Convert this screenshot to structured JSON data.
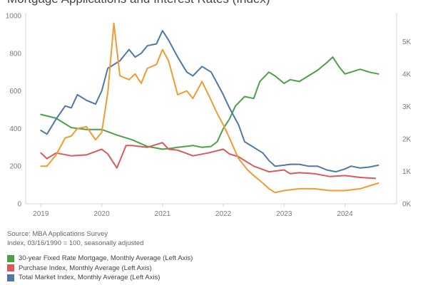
{
  "chart_data": {
    "type": "line",
    "title": "Mortgage Applications and Interest Rates (Index)",
    "left_axis": {
      "range": [
        0,
        1000
      ],
      "ticks": [
        "0",
        "200",
        "400",
        "600",
        "800",
        "1000"
      ]
    },
    "right_axis": {
      "range": [
        0,
        5800
      ],
      "ticks": [
        "0K",
        "1K",
        "2K",
        "3K",
        "4K",
        "5K"
      ]
    },
    "x_axis": {
      "range": [
        2018.75,
        2024.85
      ],
      "ticks": [
        "2019",
        "2020",
        "2021",
        "2022",
        "2023",
        "2024"
      ]
    },
    "grid": false,
    "legend_position": "bottom-left",
    "series": [
      {
        "name": "30-year Fixed Rate Mortgage, Monthly Average (Left Axis)",
        "color": "#4e9f4a",
        "axis": "left",
        "x": [
          2019.0,
          2019.25,
          2019.5,
          2019.75,
          2020.0,
          2020.25,
          2020.5,
          2020.75,
          2021.0,
          2021.15,
          2021.25,
          2021.5,
          2021.65,
          2021.8,
          2021.9,
          2022.0,
          2022.1,
          2022.2,
          2022.35,
          2022.5,
          2022.6,
          2022.75,
          2022.85,
          2023.0,
          2023.1,
          2023.25,
          2023.4,
          2023.55,
          2023.7,
          2023.8,
          2023.9,
          2024.0,
          2024.1,
          2024.25,
          2024.4,
          2024.55
        ],
        "y": [
          475,
          455,
          405,
          395,
          395,
          365,
          340,
          305,
          290,
          295,
          300,
          310,
          300,
          305,
          330,
          400,
          450,
          520,
          570,
          560,
          650,
          700,
          680,
          640,
          660,
          650,
          680,
          710,
          750,
          780,
          730,
          690,
          700,
          715,
          700,
          690
        ]
      },
      {
        "name": "Purchase Index, Monthly Average (Left Axis)",
        "color": "#d85a5a",
        "axis": "left",
        "x": [
          2019.0,
          2019.1,
          2019.25,
          2019.5,
          2019.75,
          2020.0,
          2020.1,
          2020.25,
          2020.4,
          2020.5,
          2020.75,
          2021.0,
          2021.1,
          2021.25,
          2021.5,
          2021.75,
          2022.0,
          2022.1,
          2022.25,
          2022.5,
          2022.75,
          2023.0,
          2023.1,
          2023.25,
          2023.5,
          2023.75,
          2024.0,
          2024.25,
          2024.5
        ],
        "y": [
          270,
          240,
          270,
          255,
          260,
          290,
          265,
          190,
          310,
          310,
          300,
          325,
          290,
          285,
          255,
          270,
          290,
          265,
          250,
          200,
          170,
          180,
          160,
          165,
          160,
          145,
          150,
          140,
          135
        ]
      },
      {
        "name": "Total Market Index, Monthly Average (Left Axis)",
        "color": "#4f78a8",
        "axis": "left",
        "x": [
          2019.0,
          2019.1,
          2019.25,
          2019.4,
          2019.5,
          2019.6,
          2019.75,
          2019.9,
          2020.0,
          2020.1,
          2020.2,
          2020.3,
          2020.45,
          2020.55,
          2020.65,
          2020.75,
          2020.9,
          2021.0,
          2021.1,
          2021.25,
          2021.4,
          2021.5,
          2021.65,
          2021.8,
          2021.9,
          2022.0,
          2022.1,
          2022.25,
          2022.35,
          2022.5,
          2022.65,
          2022.75,
          2022.85,
          2023.0,
          2023.1,
          2023.25,
          2023.4,
          2023.55,
          2023.7,
          2023.85,
          2024.0,
          2024.1,
          2024.25,
          2024.4,
          2024.55
        ],
        "y": [
          390,
          370,
          450,
          520,
          510,
          580,
          550,
          530,
          600,
          720,
          740,
          760,
          820,
          780,
          800,
          840,
          850,
          920,
          870,
          780,
          700,
          680,
          730,
          700,
          640,
          580,
          510,
          420,
          330,
          300,
          270,
          230,
          200,
          205,
          210,
          210,
          200,
          200,
          180,
          170,
          185,
          200,
          190,
          195,
          205
        ]
      },
      {
        "name": "",
        "color": "#f09b33",
        "axis": "left",
        "x": [
          2019.0,
          2019.1,
          2019.25,
          2019.4,
          2019.5,
          2019.6,
          2019.75,
          2019.9,
          2020.0,
          2020.1,
          2020.2,
          2020.3,
          2020.45,
          2020.55,
          2020.65,
          2020.75,
          2020.9,
          2021.0,
          2021.1,
          2021.25,
          2021.4,
          2021.5,
          2021.65,
          2021.8,
          2021.9,
          2022.0,
          2022.1,
          2022.25,
          2022.4,
          2022.5,
          2022.65,
          2022.75,
          2022.85,
          2023.0,
          2023.25,
          2023.5,
          2023.75,
          2024.0,
          2024.25,
          2024.55
        ],
        "y": [
          200,
          200,
          260,
          350,
          360,
          400,
          410,
          340,
          380,
          590,
          960,
          680,
          660,
          690,
          640,
          720,
          740,
          820,
          760,
          580,
          600,
          560,
          650,
          550,
          480,
          420,
          350,
          240,
          180,
          150,
          110,
          80,
          60,
          70,
          80,
          80,
          70,
          70,
          80,
          110
        ]
      }
    ],
    "source_note": "Source: MBA Applications Survey",
    "index_note": "Index, 03/16/1990 = 100, seasonally adjusted"
  }
}
